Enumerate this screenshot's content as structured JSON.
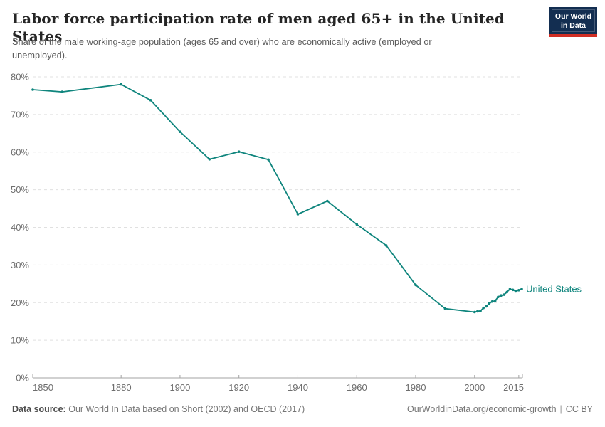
{
  "chart_data": {
    "type": "line",
    "title": "Labor force participation rate of men aged 65+ in the United States",
    "subtitle": "Share of the male working-age population (ages 65 and over) who are economically active (employed or unemployed).",
    "xlabel": "",
    "ylabel": "",
    "xlim": [
      1850,
      2016
    ],
    "ylim": [
      0,
      80
    ],
    "x_ticks": [
      1850,
      1880,
      1900,
      1920,
      1940,
      1960,
      1980,
      2000,
      2015
    ],
    "y_ticks": [
      0,
      10,
      20,
      30,
      40,
      50,
      60,
      70,
      80
    ],
    "y_tick_format": "{}%",
    "grid": "horizontal-dashed",
    "legend_position": "end-of-line-label",
    "series": [
      {
        "name": "United States",
        "color": "#0F857D",
        "points": [
          [
            1850,
            76.6
          ],
          [
            1860,
            76.0
          ],
          [
            1880,
            78.0
          ],
          [
            1890,
            73.8
          ],
          [
            1900,
            65.4
          ],
          [
            1910,
            58.1
          ],
          [
            1920,
            60.1
          ],
          [
            1930,
            58.0
          ],
          [
            1940,
            43.5
          ],
          [
            1950,
            47.0
          ],
          [
            1960,
            40.8
          ],
          [
            1970,
            35.2
          ],
          [
            1980,
            24.7
          ],
          [
            1990,
            18.4
          ],
          [
            2000,
            17.5
          ],
          [
            2001,
            17.7
          ],
          [
            2002,
            17.8
          ],
          [
            2003,
            18.6
          ],
          [
            2004,
            19.0
          ],
          [
            2005,
            19.8
          ],
          [
            2006,
            20.3
          ],
          [
            2007,
            20.5
          ],
          [
            2008,
            21.5
          ],
          [
            2009,
            21.9
          ],
          [
            2010,
            22.1
          ],
          [
            2011,
            22.8
          ],
          [
            2012,
            23.6
          ],
          [
            2013,
            23.4
          ],
          [
            2014,
            23.0
          ],
          [
            2015,
            23.3
          ],
          [
            2016,
            23.6
          ]
        ]
      }
    ]
  },
  "logo": {
    "line1": "Our World",
    "line2": "in Data",
    "bg_color": "#132E51",
    "bar_color": "#D12E24"
  },
  "footer": {
    "source_label": "Data source:",
    "source_text": "Our World In Data based on Short (2002) and OECD (2017)",
    "link": "OurWorldinData.org/economic-growth",
    "separator": "|",
    "license": "CC BY"
  },
  "colors": {
    "line": "#0F857D",
    "grid": "#e0e0e0",
    "axis": "#a3a3a3",
    "tick_label": "#6e6e6e"
  }
}
